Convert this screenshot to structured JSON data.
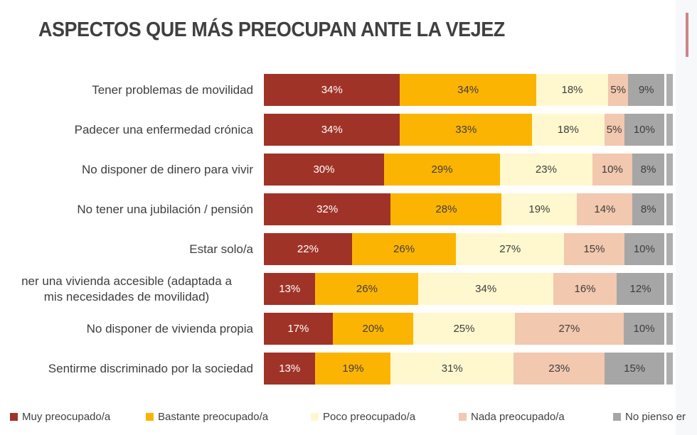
{
  "title": "ASPECTOS QUE MÁS PREOCUPAN ANTE LA VEJEZ",
  "chart_data": {
    "type": "bar",
    "orientation": "horizontal-stacked",
    "unit": "%",
    "categories": [
      "Tener problemas de movilidad",
      "Padecer una enfermedad crónica",
      "No disponer de dinero para vivir",
      "No tener una jubilación / pensión",
      "Estar solo/a",
      [
        "ner una vivienda accesible (adaptada a",
        "mis necesidades de movilidad)"
      ],
      "No disponer de vivienda propia",
      "Sentirme discriminado por la sociedad"
    ],
    "series": [
      {
        "name": "Muy preocupado/a",
        "color": "#a03327",
        "label_color": "#ffffff",
        "values": [
          34,
          34,
          30,
          32,
          22,
          13,
          17,
          13
        ]
      },
      {
        "name": "Bastante preocupado/a",
        "color": "#fcb403",
        "label_color": "#3d3d3d",
        "values": [
          34,
          33,
          29,
          28,
          26,
          26,
          20,
          19
        ]
      },
      {
        "name": "Poco preocupado/a",
        "color": "#fff8cf",
        "label_color": "#3d3d3d",
        "values": [
          18,
          18,
          23,
          19,
          27,
          34,
          25,
          31
        ]
      },
      {
        "name": "Nada preocupado/a",
        "color": "#f2c8af",
        "label_color": "#3d3d3d",
        "values": [
          5,
          5,
          10,
          14,
          15,
          16,
          27,
          23
        ]
      },
      {
        "name": "No pienso er",
        "color": "#a6a6a6",
        "label_color": "#3d3d3d",
        "values": [
          9,
          10,
          8,
          8,
          10,
          12,
          10,
          15
        ]
      }
    ],
    "title": "ASPECTOS QUE MÁS PREOCUPAN ANTE LA VEJEZ",
    "legend_position": "bottom",
    "grid": false,
    "xlim": [
      0,
      100
    ]
  },
  "legend": {
    "items": [
      {
        "label": "Muy preocupado/a",
        "color": "#a03327"
      },
      {
        "label": "Bastante preocupado/a",
        "color": "#fcb403"
      },
      {
        "label": "Poco preocupado/a",
        "color": "#fff8cf"
      },
      {
        "label": "Nada preocupado/a",
        "color": "#f2c8af"
      },
      {
        "label": "No pienso er",
        "color": "#a6a6a6"
      }
    ]
  },
  "decor": {
    "accent_line_color": "#cf8486",
    "right_strip_color": "#f7f8fa"
  }
}
